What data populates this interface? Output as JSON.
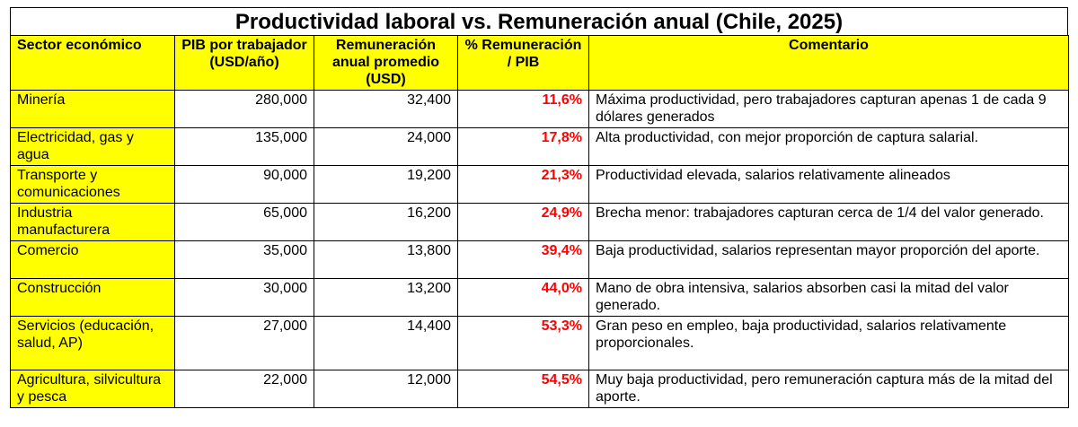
{
  "title": "Productividad laboral vs. Remuneración anual (Chile, 2025)",
  "headers": [
    "Sector económico",
    "PIB por trabajador (USD/año)",
    "Remuneración anual promedio (USD)",
    "% Remuneración / PIB",
    "Comentario"
  ],
  "rows": [
    {
      "sector": "Minería",
      "pib": "280,000",
      "rem": "32,400",
      "pct": "11,6%",
      "comment": "Máxima productividad, pero trabajadores capturan apenas 1 de cada 9 dólares generados"
    },
    {
      "sector": "Electricidad, gas y agua",
      "pib": "135,000",
      "rem": "24,000",
      "pct": "17,8%",
      "comment": "Alta productividad, con mejor proporción de captura salarial."
    },
    {
      "sector": "Transporte y comunicaciones",
      "pib": "90,000",
      "rem": "19,200",
      "pct": "21,3%",
      "comment": "Productividad elevada, salarios relativamente alineados"
    },
    {
      "sector": "Industria manufacturera",
      "pib": "65,000",
      "rem": "16,200",
      "pct": "24,9%",
      "comment": "Brecha menor: trabajadores capturan cerca de 1/4 del valor generado."
    },
    {
      "sector": "Comercio",
      "pib": "35,000",
      "rem": "13,800",
      "pct": "39,4%",
      "comment": "Baja productividad, salarios representan mayor proporción del aporte."
    },
    {
      "sector": "Construcción",
      "pib": "30,000",
      "rem": "13,200",
      "pct": "44,0%",
      "comment": "Mano de obra intensiva, salarios absorben casi la mitad del valor generado."
    },
    {
      "sector": "Servicios (educación, salud, AP)",
      "pib": "27,000",
      "rem": "14,400",
      "pct": "53,3%",
      "comment": "Gran peso en empleo, baja productividad, salarios relativamente proporcionales."
    },
    {
      "sector": "Agricultura, silvicultura y pesca",
      "pib": "22,000",
      "rem": "12,000",
      "pct": "54,5%",
      "comment": "Muy baja productividad, pero remuneración captura más de la mitad del aporte."
    }
  ],
  "colors": {
    "header_bg": "#ffff00",
    "pct_text": "#ff0000"
  }
}
